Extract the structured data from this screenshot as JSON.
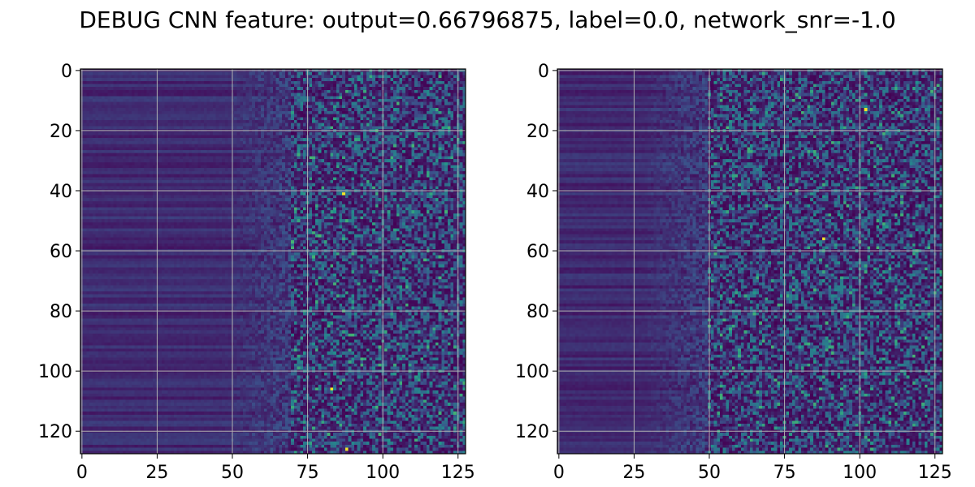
{
  "title": "DEBUG CNN feature: output=0.66796875, label=0.0, network_snr=-1.0",
  "colormap": {
    "name": "viridis",
    "colors": [
      "#440154",
      "#3b528b",
      "#21918c",
      "#5ec962",
      "#fde725"
    ]
  },
  "chart_data": [
    {
      "type": "heatmap",
      "xticks": [
        0,
        25,
        50,
        75,
        100,
        125
      ],
      "yticks": [
        0,
        20,
        40,
        60,
        80,
        100,
        120
      ],
      "xlim": [
        -0.5,
        127.5
      ],
      "ylim": [
        127.5,
        -0.5
      ],
      "grid": true,
      "matrix_shape": [
        128,
        128
      ],
      "description_of_values": "128x128 feature map; left ~70 columns dark purple with horizontal banding, right side noisy blue/teal speckle",
      "hot_spots": [
        [
          83,
          106
        ],
        [
          87,
          41
        ],
        [
          88,
          126
        ]
      ]
    },
    {
      "type": "heatmap",
      "xticks": [
        0,
        25,
        50,
        75,
        100,
        125
      ],
      "yticks": [
        0,
        20,
        40,
        60,
        80,
        100,
        120
      ],
      "xlim": [
        -0.5,
        127.5
      ],
      "ylim": [
        127.5,
        -0.5
      ],
      "grid": true,
      "matrix_shape": [
        128,
        128
      ],
      "description_of_values": "128x128 feature map; left ~50 columns dark purple with horizontal banding, right side noisy blue/teal speckle",
      "hot_spots": [
        [
          102,
          13
        ],
        [
          88,
          56
        ]
      ]
    }
  ]
}
